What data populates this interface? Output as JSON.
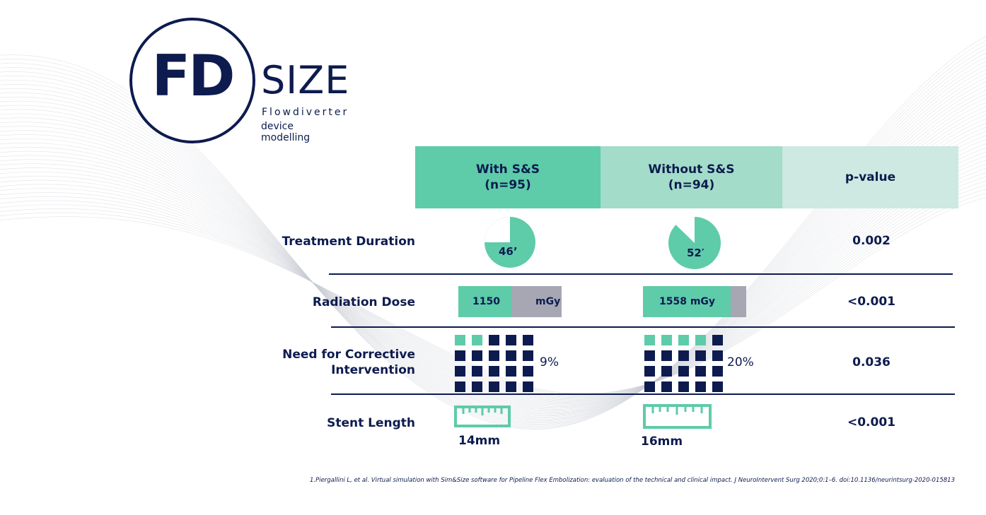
{
  "logo": {
    "mark": "FD",
    "word": "SIZE",
    "subtitle_line1": "Flowdiverter",
    "subtitle_line2": "device modelling"
  },
  "columns": {
    "with_label": "With S&S",
    "with_n": "(n=95)",
    "without_label": "Without S&S",
    "without_n": "(n=94)",
    "p_label": "p-value"
  },
  "rows": {
    "treatment_duration": {
      "label": "Treatment Duration",
      "with_value": "46’",
      "without_value": "52′",
      "p_value": "0.002"
    },
    "radiation_dose": {
      "label": "Radiation Dose",
      "with_value": "1150",
      "with_unit": "mGy",
      "without_value": "1558 mGy",
      "p_value": "<0.001"
    },
    "corrective": {
      "label_line1": "Need for Corrective",
      "label_line2": "Intervention",
      "with_pct": "9%",
      "without_pct": "20%",
      "with_highlighted_squares": 2,
      "without_highlighted_squares": 4,
      "p_value": "0.036"
    },
    "stent_length": {
      "label": "Stent Length",
      "with_value": "14mm",
      "without_value": "16mm",
      "p_value": "<0.001"
    }
  },
  "reference": "1.Piergallini L, et al. Virtual simulation with Sim&Size software for Pipeline Flex Embolization: evaluation of the technical and clinical impact. J NeuroIntervent Surg 2020;0:1–6. doi:10.1136/neurintsurg-2020-015813",
  "colors": {
    "navy": "#0d1b4f",
    "teal": "#5ecba9",
    "teal_light": "#a3dcc9",
    "teal_pale": "#cde9e1",
    "gray": "#a6a7b3"
  }
}
